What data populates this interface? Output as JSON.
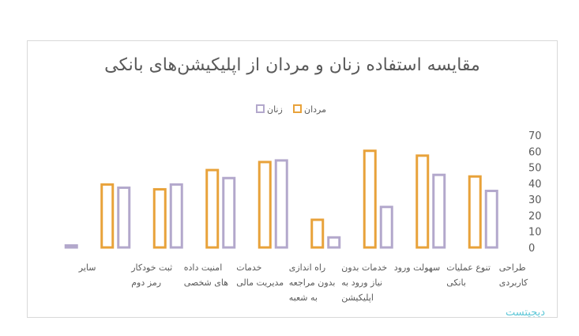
{
  "chart_data": {
    "type": "bar",
    "title": "مقایسه استفاده زنان و مردان از اپلیکیشن‌های بانکی",
    "legend_position": "top",
    "ylim": [
      0,
      70
    ],
    "yticks": [
      0,
      10,
      20,
      30,
      40,
      50,
      60,
      70
    ],
    "grid": false,
    "categories": [
      [
        "طراحی",
        "کاربردی"
      ],
      [
        "تنوع عملیات",
        "بانکی"
      ],
      [
        "سهولت ورود"
      ],
      [
        "خدمات بدون",
        "نیاز ورود به",
        "اپلیکیشن"
      ],
      [
        "راه اندازی",
        "بدون مراجعه",
        "به شعبه"
      ],
      [
        "خدمات",
        "مدیریت مالی"
      ],
      [
        "امنیت داده",
        "های شخصی"
      ],
      [
        "ثبت خودکار",
        "رمز دوم"
      ],
      [
        "سایر"
      ]
    ],
    "series": [
      {
        "name": "مردان",
        "color": "#e8a23a",
        "values": [
          45,
          58,
          61,
          18,
          54,
          49,
          37,
          40,
          0
        ]
      },
      {
        "name": "زنان",
        "color": "#b3a8cc",
        "values": [
          36,
          46,
          26,
          7,
          55,
          44,
          40,
          38,
          2
        ]
      }
    ]
  },
  "watermark": "دیجیتست"
}
